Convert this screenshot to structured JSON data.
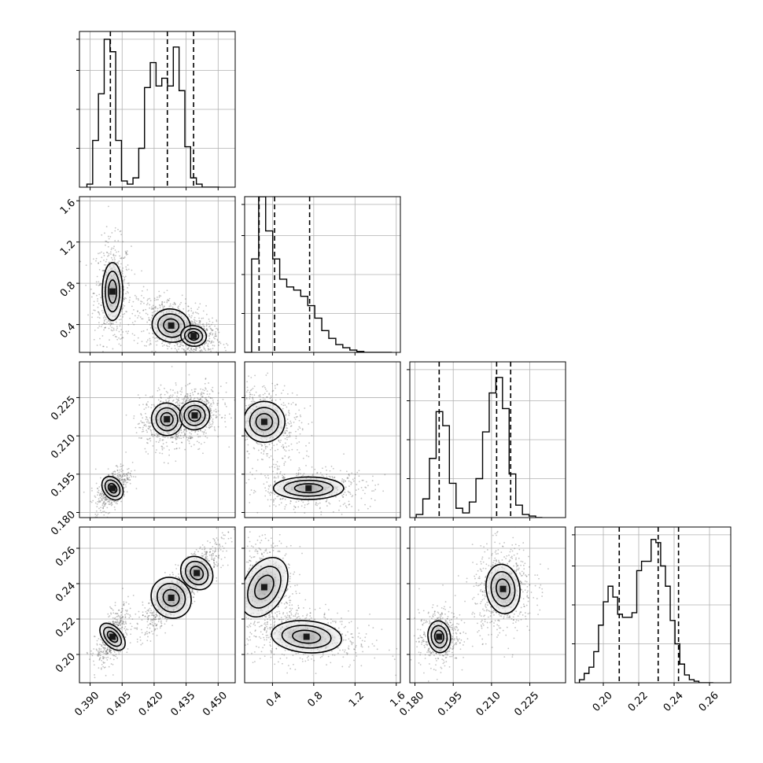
{
  "chart_data": {
    "type": "corner",
    "parameters": 4,
    "grid": true,
    "colors": {
      "line": "#000000",
      "background": "#ffffff",
      "grid": "#b0b0b0",
      "samples": "#555555"
    },
    "ranges": [
      [
        0.385,
        0.458
      ],
      [
        0.13,
        1.64
      ],
      [
        0.178,
        0.239
      ],
      [
        0.184,
        0.272
      ]
    ],
    "ticks": [
      {
        "values": [
          0.39,
          0.405,
          0.42,
          0.435,
          0.45
        ],
        "labels": [
          "0.390",
          "0.405",
          "0.420",
          "0.435",
          "0.450"
        ]
      },
      {
        "values": [
          0.4,
          0.8,
          1.2,
          1.6
        ],
        "labels": [
          "0.4",
          "0.8",
          "1.2",
          "1.6"
        ]
      },
      {
        "values": [
          0.18,
          0.195,
          0.21,
          0.225
        ],
        "labels": [
          "0.180",
          "0.195",
          "0.210",
          "0.225"
        ]
      },
      {
        "values": [
          0.2,
          0.22,
          0.24,
          0.26
        ],
        "labels": [
          "0.20",
          "0.22",
          "0.24",
          "0.26"
        ]
      }
    ],
    "quantiles": [
      [
        0.3995,
        0.4262,
        0.4385
      ],
      [
        0.27,
        0.42,
        0.76
      ],
      [
        0.1895,
        0.212,
        0.2175
      ],
      [
        0.209,
        0.231,
        0.2425
      ]
    ],
    "histograms": [
      {
        "edges": [
          0.3885,
          0.3912,
          0.3939,
          0.3966,
          0.3993,
          0.402,
          0.4047,
          0.4074,
          0.4101,
          0.4128,
          0.4155,
          0.4182,
          0.4209,
          0.4236,
          0.4263,
          0.429,
          0.4317,
          0.4344,
          0.4371,
          0.4398,
          0.4425,
          0.4452,
          0.4479,
          0.4506
        ],
        "counts": [
          0.02,
          0.3,
          0.6,
          0.95,
          0.87,
          0.3,
          0.04,
          0.02,
          0.06,
          0.25,
          0.64,
          0.8,
          0.65,
          0.7,
          0.65,
          0.9,
          0.62,
          0.26,
          0.06,
          0.02,
          0,
          0,
          0
        ]
      },
      {
        "edges": [
          0.13,
          0.198,
          0.266,
          0.334,
          0.402,
          0.47,
          0.538,
          0.606,
          0.674,
          0.742,
          0.81,
          0.878,
          0.946,
          1.014,
          1.082,
          1.15,
          1.218,
          1.286,
          1.354,
          1.422,
          1.49,
          1.558
        ],
        "counts": [
          0,
          0.6,
          1.0,
          0.78,
          0.6,
          0.47,
          0.42,
          0.4,
          0.36,
          0.3,
          0.22,
          0.14,
          0.09,
          0.05,
          0.03,
          0.015,
          0.006,
          0,
          0,
          0,
          0
        ]
      },
      {
        "edges": [
          0.1805,
          0.1831,
          0.1857,
          0.1883,
          0.1909,
          0.1935,
          0.1961,
          0.1987,
          0.2013,
          0.2039,
          0.2065,
          0.2091,
          0.2117,
          0.2143,
          0.2169,
          0.2195,
          0.2221,
          0.2247,
          0.2273,
          0.2299
        ],
        "counts": [
          0.02,
          0.12,
          0.38,
          0.68,
          0.59,
          0.22,
          0.06,
          0.03,
          0.1,
          0.25,
          0.55,
          0.8,
          0.9,
          0.7,
          0.28,
          0.08,
          0.02,
          0.01,
          0
        ]
      },
      {
        "edges": [
          0.1865,
          0.1892,
          0.1919,
          0.1946,
          0.1973,
          0.2,
          0.2027,
          0.2054,
          0.2081,
          0.2108,
          0.2135,
          0.2162,
          0.2189,
          0.2216,
          0.2243,
          0.227,
          0.2297,
          0.2324,
          0.2351,
          0.2378,
          0.2405,
          0.2432,
          0.2459,
          0.2486,
          0.2513,
          0.254,
          0.2567,
          0.2594,
          0.2621
        ],
        "counts": [
          0.02,
          0.06,
          0.1,
          0.2,
          0.37,
          0.52,
          0.62,
          0.55,
          0.44,
          0.42,
          0.42,
          0.45,
          0.72,
          0.78,
          0.78,
          0.92,
          0.9,
          0.75,
          0.62,
          0.4,
          0.25,
          0.12,
          0.05,
          0.02,
          0.01,
          0,
          0,
          0
        ]
      }
    ],
    "blobs": [
      {
        "pair": [
          0,
          1
        ],
        "cx": 0.4005,
        "cy": 0.72,
        "sx": 0.0024,
        "sy": 0.14,
        "r": 0,
        "w": 0.6
      },
      {
        "pair": [
          0,
          1
        ],
        "cx": 0.428,
        "cy": 0.39,
        "sx": 0.0045,
        "sy": 0.08,
        "r": -0.3,
        "w": 0.7
      },
      {
        "pair": [
          0,
          1
        ],
        "cx": 0.4385,
        "cy": 0.29,
        "sx": 0.003,
        "sy": 0.05,
        "r": -0.2,
        "w": 0.5
      },
      {
        "pair": [
          0,
          2
        ],
        "cx": 0.4005,
        "cy": 0.1895,
        "sx": 0.0022,
        "sy": 0.0025,
        "r": 0.6,
        "w": 0.55
      },
      {
        "pair": [
          0,
          2
        ],
        "cx": 0.426,
        "cy": 0.2165,
        "sx": 0.0036,
        "sy": 0.0032,
        "r": 0.2,
        "w": 0.6
      },
      {
        "pair": [
          0,
          2
        ],
        "cx": 0.439,
        "cy": 0.218,
        "sx": 0.0035,
        "sy": 0.0028,
        "r": 0.2,
        "w": 0.7
      },
      {
        "pair": [
          0,
          3
        ],
        "cx": 0.4005,
        "cy": 0.21,
        "sx": 0.0022,
        "sy": 0.0045,
        "r": 0.6,
        "w": 0.55
      },
      {
        "pair": [
          0,
          3
        ],
        "cx": 0.428,
        "cy": 0.232,
        "sx": 0.0045,
        "sy": 0.006,
        "r": 0.85,
        "w": 0.7
      },
      {
        "pair": [
          0,
          3
        ],
        "cx": 0.44,
        "cy": 0.246,
        "sx": 0.0035,
        "sy": 0.005,
        "r": 0.8,
        "w": 0.55
      },
      {
        "pair": [
          1,
          2
        ],
        "cx": 0.32,
        "cy": 0.2155,
        "sx": 0.1,
        "sy": 0.004,
        "r": -0.2,
        "w": 0.7
      },
      {
        "pair": [
          1,
          2
        ],
        "cx": 0.75,
        "cy": 0.1895,
        "sx": 0.17,
        "sy": 0.0022,
        "r": 0,
        "w": 0.55
      },
      {
        "pair": [
          1,
          3
        ],
        "cx": 0.32,
        "cy": 0.238,
        "sx": 0.1,
        "sy": 0.009,
        "r": -0.4,
        "w": 0.7
      },
      {
        "pair": [
          1,
          3
        ],
        "cx": 0.73,
        "cy": 0.21,
        "sx": 0.17,
        "sy": 0.0045,
        "r": -0.2,
        "w": 0.55
      },
      {
        "pair": [
          2,
          3
        ],
        "cx": 0.1895,
        "cy": 0.21,
        "sx": 0.0022,
        "sy": 0.0045,
        "r": 0.1,
        "w": 0.55
      },
      {
        "pair": [
          2,
          3
        ],
        "cx": 0.2145,
        "cy": 0.237,
        "sx": 0.0033,
        "sy": 0.007,
        "r": 0.1,
        "w": 0.7
      }
    ]
  }
}
